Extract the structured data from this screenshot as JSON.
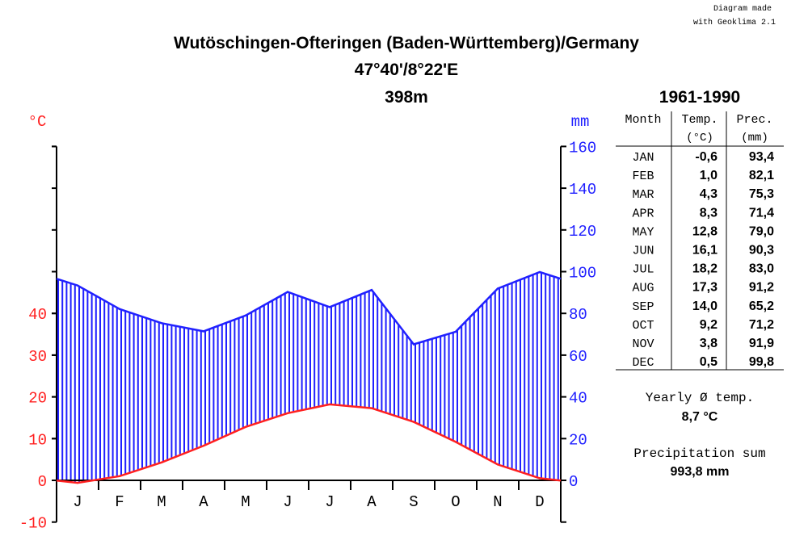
{
  "credit": {
    "line1": "Diagram made",
    "line2": "with Geoklima 2.1"
  },
  "header": {
    "title": "Wutöschingen-Ofteringen (Baden-Württemberg)/Germany",
    "coords": "47°40'/8°22'E",
    "elevation": "398m",
    "period": "1961-1990"
  },
  "colors": {
    "temperature": "#ff2020",
    "precipitation": "#2020ff",
    "axis": "#000000"
  },
  "chart_data": {
    "type": "line",
    "categories": [
      "J",
      "F",
      "M",
      "A",
      "M",
      "J",
      "J",
      "A",
      "S",
      "O",
      "N",
      "D"
    ],
    "temp_axis": {
      "unit": "°C",
      "range": [
        -10,
        40
      ],
      "ticks": [
        -10,
        0,
        10,
        20,
        30,
        40
      ]
    },
    "prec_axis": {
      "unit": "mm",
      "range": [
        0,
        160
      ],
      "ticks": [
        0,
        20,
        40,
        60,
        80,
        100,
        120,
        140,
        160
      ]
    },
    "series": [
      {
        "values": [
          -0.6,
          1.0,
          4.3,
          8.3,
          12.8,
          16.1,
          18.2,
          17.3,
          14.0,
          9.2,
          3.8,
          0.5
        ]
      },
      {
        "values": [
          93.4,
          82.1,
          75.3,
          71.4,
          79.0,
          90.3,
          83.0,
          91.2,
          65.2,
          71.2,
          91.9,
          99.8
        ]
      }
    ]
  },
  "table": {
    "headers": {
      "month": "Month",
      "temp": "Temp.",
      "temp_unit": "(°C)",
      "prec": "Prec.",
      "prec_unit": "(mm)"
    },
    "rows": [
      {
        "month": "JAN",
        "temp": "-0,6",
        "prec": "93,4"
      },
      {
        "month": "FEB",
        "temp": "1,0",
        "prec": "82,1"
      },
      {
        "month": "MAR",
        "temp": "4,3",
        "prec": "75,3"
      },
      {
        "month": "APR",
        "temp": "8,3",
        "prec": "71,4"
      },
      {
        "month": "MAY",
        "temp": "12,8",
        "prec": "79,0"
      },
      {
        "month": "JUN",
        "temp": "16,1",
        "prec": "90,3"
      },
      {
        "month": "JUL",
        "temp": "18,2",
        "prec": "83,0"
      },
      {
        "month": "AUG",
        "temp": "17,3",
        "prec": "91,2"
      },
      {
        "month": "SEP",
        "temp": "14,0",
        "prec": "65,2"
      },
      {
        "month": "OCT",
        "temp": "9,2",
        "prec": "71,2"
      },
      {
        "month": "NOV",
        "temp": "3,8",
        "prec": "91,9"
      },
      {
        "month": "DEC",
        "temp": "0,5",
        "prec": "99,8"
      }
    ]
  },
  "summary": {
    "yearly_label": "Yearly Ø temp.",
    "yearly_value": "8,7 °C",
    "precip_label": "Precipitation sum",
    "precip_value": "993,8 mm"
  }
}
